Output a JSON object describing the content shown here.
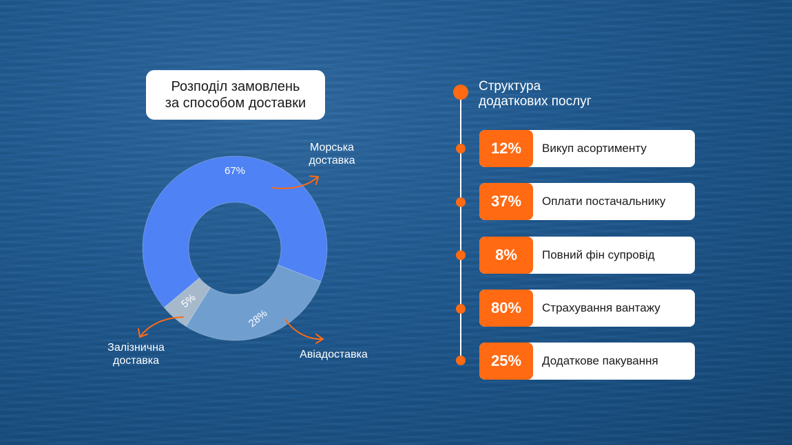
{
  "left_title": {
    "line1": "Розподіл замовлень",
    "line2": "за способом доставки"
  },
  "chart_data": {
    "type": "pie",
    "title": "Розподіл замовлень за способом доставки",
    "donut": true,
    "slices": [
      {
        "name": "Морська доставка",
        "value": 67,
        "label": "67%",
        "color": "#4f82f4"
      },
      {
        "name": "Авіадоставка",
        "value": 28,
        "label": "28%",
        "color": "#709fcf"
      },
      {
        "name": "Залізнична доставка",
        "value": 5,
        "label": "5%",
        "color": "#a5b9cb"
      }
    ]
  },
  "categories": {
    "sea": {
      "line1": "Морська",
      "line2": "доставка"
    },
    "air": "Авіадоставка",
    "rail": {
      "line1": "Залізнична",
      "line2": "доставка"
    }
  },
  "services": {
    "title_line1": "Структура",
    "title_line2": "додаткових послуг",
    "accent_color": "#ff6a13",
    "items": [
      {
        "percent": "12%",
        "label": "Викуп асортименту"
      },
      {
        "percent": "37%",
        "label": "Оплати постачальнику"
      },
      {
        "percent": "8%",
        "label": "Повний фін супровід"
      },
      {
        "percent": "80%",
        "label": "Страхування вантажу"
      },
      {
        "percent": "25%",
        "label": "Додаткове пакування"
      }
    ]
  }
}
